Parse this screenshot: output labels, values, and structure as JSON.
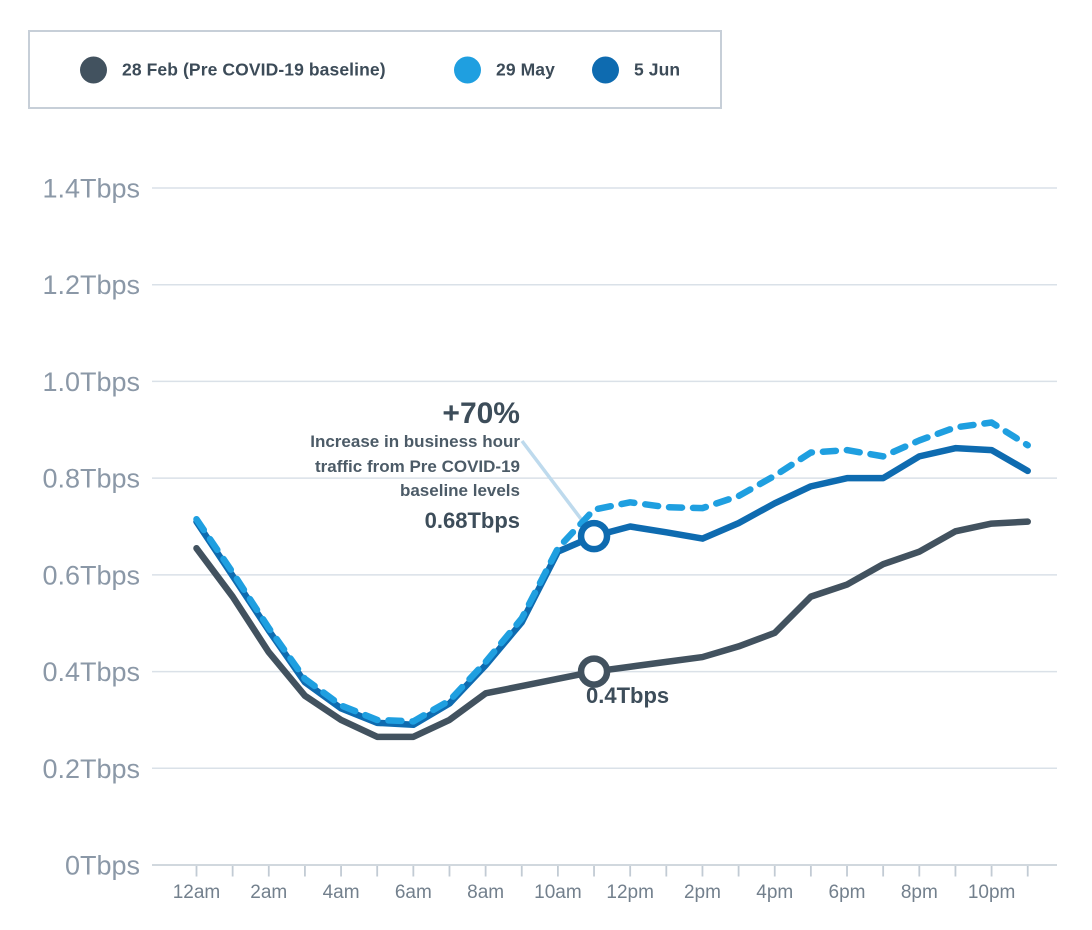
{
  "legend": {
    "items": [
      {
        "label": "28 Feb (Pre COVID-19 baseline)",
        "color": "#42525f"
      },
      {
        "label": "29 May",
        "color": "#1f9fe0"
      },
      {
        "label": "5 Jun",
        "color": "#0e6bb0"
      }
    ]
  },
  "annotation": {
    "title": "+70%",
    "lines": [
      "Increase in business hour",
      "traffic from Pre COVID-19",
      "baseline levels"
    ],
    "value": "0.68Tbps"
  },
  "point_label": "0.4Tbps",
  "colors": {
    "baseline_series": "#42525f",
    "may29_series": "#1f9fe0",
    "jun5_series": "#0e6bb0",
    "grid": "#dae1e8",
    "axis": "#c2cbd4",
    "callout": "#bedaed"
  },
  "chart_data": {
    "type": "line",
    "x": [
      "12am",
      "1am",
      "2am",
      "3am",
      "4am",
      "5am",
      "6am",
      "7am",
      "8am",
      "9am",
      "10am",
      "11am",
      "12pm",
      "1pm",
      "2pm",
      "3pm",
      "4pm",
      "5pm",
      "6pm",
      "7pm",
      "8pm",
      "9pm",
      "10pm",
      "11pm"
    ],
    "xtick_label_every": 2,
    "ylim": [
      0,
      1.4
    ],
    "ytick_step": 0.2,
    "ytick_labels": [
      "0Tbps",
      "0.2Tbps",
      "0.4Tbps",
      "0.6Tbps",
      "0.8Tbps",
      "1.0Tbps",
      "1.2Tbps",
      "1.4Tbps"
    ],
    "y_unit": "Tbps",
    "grid": "horizontal",
    "legend_position": "top-left",
    "series": [
      {
        "name": "28 Feb (Pre COVID-19 baseline)",
        "color": "#42525f",
        "style": "solid",
        "values": [
          0.655,
          0.555,
          0.44,
          0.35,
          0.3,
          0.265,
          0.265,
          0.3,
          0.355,
          0.37,
          0.385,
          0.4,
          0.41,
          0.42,
          0.43,
          0.452,
          0.48,
          0.555,
          0.58,
          0.622,
          0.648,
          0.69,
          0.706,
          0.71
        ]
      },
      {
        "name": "29 May",
        "color": "#1f9fe0",
        "style": "dashed",
        "values": [
          0.715,
          0.605,
          0.49,
          0.385,
          0.33,
          0.3,
          0.297,
          0.34,
          0.42,
          0.51,
          0.655,
          0.735,
          0.75,
          0.74,
          0.738,
          0.763,
          0.805,
          0.853,
          0.858,
          0.845,
          0.878,
          0.905,
          0.915,
          0.868
        ]
      },
      {
        "name": "5 Jun",
        "color": "#0e6bb0",
        "style": "solid",
        "values": [
          0.71,
          0.598,
          0.485,
          0.378,
          0.324,
          0.294,
          0.29,
          0.334,
          0.413,
          0.502,
          0.648,
          0.68,
          0.7,
          0.688,
          0.675,
          0.707,
          0.748,
          0.783,
          0.8,
          0.8,
          0.845,
          0.862,
          0.858,
          0.815
        ]
      }
    ],
    "markers": [
      {
        "series": "5 Jun",
        "x": "11am",
        "value": 0.68,
        "label": "0.68Tbps"
      },
      {
        "series": "28 Feb (Pre COVID-19 baseline)",
        "x": "11am",
        "value": 0.4,
        "label": "0.4Tbps"
      }
    ]
  }
}
